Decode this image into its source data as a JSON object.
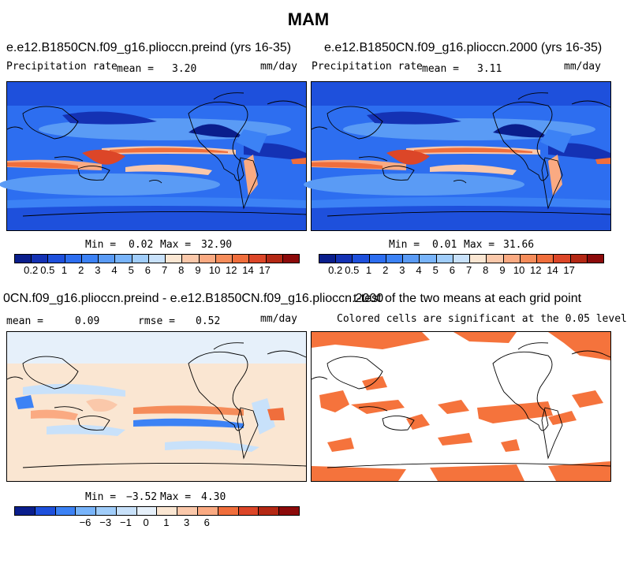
{
  "title": "MAM",
  "panels": [
    {
      "title": "e.e12.B1850CN.f09_g16.plioccn.preind (yrs 16-35)",
      "left_label": "Precipitation rate",
      "mean_label": "mean =",
      "mean_value": "3.20",
      "units": "mm/day",
      "min_label": "Min =",
      "min_value": "0.02",
      "max_label": "Max =",
      "max_value": "32.90"
    },
    {
      "title": "e.e12.B1850CN.f09_g16.plioccn.2000 (yrs 16-35)",
      "left_label": "Precipitation rate",
      "mean_label": "mean =",
      "mean_value": "3.11",
      "units": "mm/day",
      "min_label": "Min =",
      "min_value": "0.01",
      "max_label": "Max =",
      "max_value": "31.66"
    },
    {
      "title": "0CN.f09_g16.plioccn.preind - e.e12.B1850CN.f09_g16.plioccn.2000",
      "mean_label": "mean =",
      "mean_value": "0.09",
      "rmse_label": "rmse =",
      "rmse_value": "0.52",
      "units": "mm/day",
      "min_label": "Min =",
      "min_value": "−3.52",
      "max_label": "Max =",
      "max_value": "4.30"
    },
    {
      "title": "t-test of the two means at each grid point",
      "subtitle": "Colored cells are significant at the 0.05 level"
    }
  ],
  "colorbars": {
    "precip": {
      "colors": [
        "#0a1e8c",
        "#1432b4",
        "#1e50dc",
        "#2d6ef0",
        "#3c82f5",
        "#5a9bf5",
        "#78b4fa",
        "#a0cdfa",
        "#c8e1fa",
        "#fae6d2",
        "#fac8aa",
        "#faaa82",
        "#f58c5a",
        "#f06e3c",
        "#dc4628",
        "#b42814",
        "#8c0a0a"
      ],
      "labels": [
        "0.2",
        "0.5",
        "1",
        "2",
        "3",
        "4",
        "5",
        "6",
        "7",
        "8",
        "9",
        "10",
        "12",
        "14",
        "17"
      ]
    },
    "diff": {
      "colors": [
        "#0a1e8c",
        "#1e50dc",
        "#3c82f5",
        "#78b4fa",
        "#a0cdfa",
        "#c8e1fa",
        "#e6f0fa",
        "#fae6d2",
        "#fac8aa",
        "#faaa82",
        "#f06e3c",
        "#dc4628",
        "#b42814",
        "#8c0a0a"
      ],
      "labels": [
        "−6",
        "−3",
        "−1",
        "0",
        "1",
        "3",
        "6"
      ]
    },
    "significance_color": "#f5733c"
  }
}
